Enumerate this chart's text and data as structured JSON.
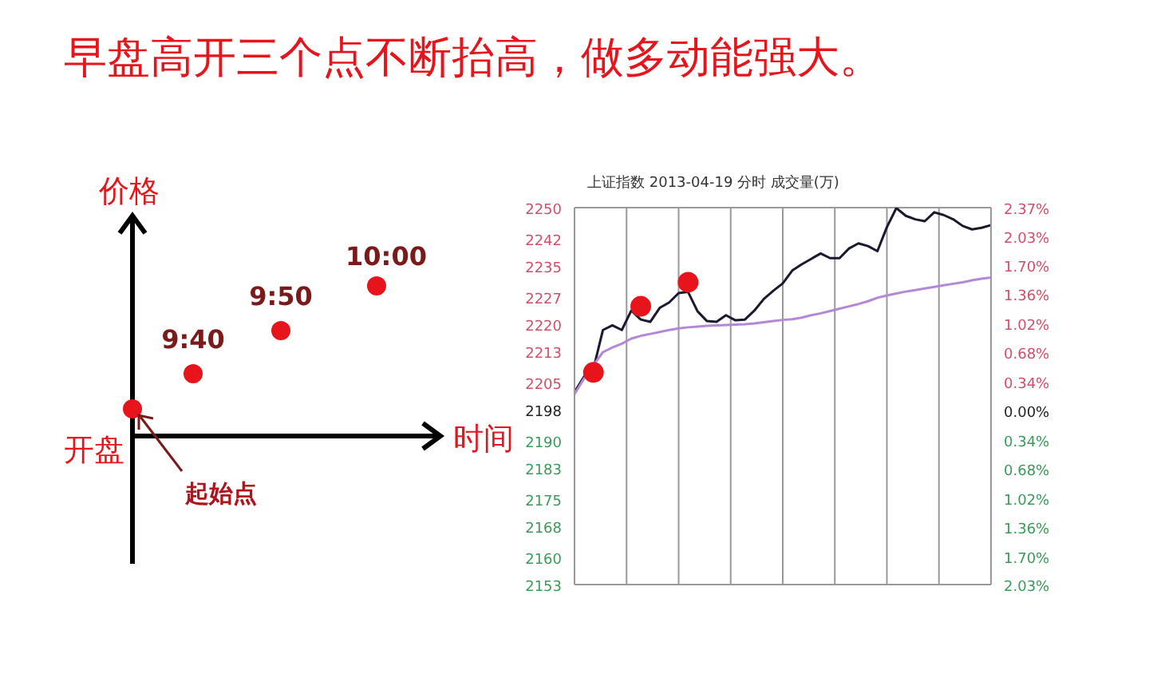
{
  "chart_data": [
    {
      "type": "other",
      "title": "早盘高开三个点不断抬高，做多动能强大。",
      "xlabel": "时间",
      "ylabel": "价格",
      "annotations": [
        "9:40",
        "9:50",
        "10:00",
        "开盘",
        "起始点"
      ]
    },
    {
      "type": "line",
      "title": "上证指数 2013-04-19 分时 成交量(万)",
      "categories": [
        null,
        null,
        null,
        null,
        null,
        null,
        null,
        null,
        null,
        null,
        null,
        null,
        null,
        null,
        null,
        null,
        null,
        null,
        null,
        null,
        null,
        null,
        null,
        null,
        null,
        null,
        null,
        null,
        null,
        null,
        null,
        null,
        null,
        null,
        null,
        null,
        null,
        null,
        null,
        null,
        null,
        null,
        null,
        null,
        null
      ],
      "ylim": [
        2153,
        2250
      ],
      "yticks": [
        2250,
        2242,
        2235,
        2227,
        2220,
        2213,
        2205,
        2198,
        2190,
        2183,
        2175,
        2168,
        2160,
        2153
      ],
      "y2lim": [
        -2.03,
        2.37
      ],
      "y2ticks": [
        {
          "value": 2.37,
          "label": "2.37%"
        },
        {
          "value": 2.03,
          "label": "2.03%"
        },
        {
          "value": 1.7,
          "label": "1.70%"
        },
        {
          "value": 1.36,
          "label": "1.36%"
        },
        {
          "value": 1.02,
          "label": "1.02%"
        },
        {
          "value": 0.68,
          "label": "0.68%"
        },
        {
          "value": 0.34,
          "label": "0.34%"
        },
        {
          "value": 0,
          "label": "0.00%"
        },
        {
          "value": -0.34,
          "label": "0.34%"
        },
        {
          "value": -0.68,
          "label": "0.68%"
        },
        {
          "value": -1.02,
          "label": "1.02%"
        },
        {
          "value": -1.36,
          "label": "1.36%"
        },
        {
          "value": -1.7,
          "label": "1.70%"
        },
        {
          "value": -2.03,
          "label": "2.03%"
        }
      ],
      "grid": true,
      "legend": false,
      "marker": "none",
      "series": [
        {
          "color": "#1a1a2e",
          "values": [
            2202.5,
            2206.5,
            2208.5,
            2218.5,
            2219.7,
            2218.5,
            2223.5,
            2221.2,
            2220.6,
            2224.2,
            2225.6,
            2228,
            2228.3,
            2223.3,
            2220.8,
            2220.6,
            2222.3,
            2221,
            2221.2,
            2223.5,
            2226.5,
            2228.6,
            2230.5,
            2233.8,
            2235.4,
            2236.8,
            2238.2,
            2237,
            2237,
            2239.5,
            2240.8,
            2240.1,
            2238.8,
            2245,
            2249.9,
            2247.9,
            2247,
            2246.5,
            2248.8,
            2248.1,
            2247,
            2245.3,
            2244.4,
            2244.8,
            2245.5
          ]
        },
        {
          "color": "#b388d6",
          "values": [
            2202,
            2206,
            2209.5,
            2212.8,
            2214,
            2215,
            2216.3,
            2217,
            2217.5,
            2218,
            2218.5,
            2218.9,
            2219.2,
            2219.4,
            2219.6,
            2219.7,
            2219.8,
            2219.9,
            2220,
            2220.2,
            2220.5,
            2220.8,
            2221.1,
            2221.3,
            2221.7,
            2222.3,
            2222.8,
            2223.4,
            2224,
            2224.6,
            2225.2,
            2225.9,
            2226.8,
            2227.4,
            2227.9,
            2228.4,
            2228.8,
            2229.2,
            2229.6,
            2230,
            2230.4,
            2230.8,
            2231.3,
            2231.7,
            2232
          ]
        },
        {
          "type": "scatter",
          "marker": "circle",
          "color": "#e8141c",
          "values": [
            null,
            null,
            2207.6,
            null,
            null,
            null,
            null,
            2224.6,
            null,
            null,
            null,
            null,
            2230.8,
            null,
            null,
            null,
            null,
            null,
            null,
            null,
            null,
            null,
            null,
            null,
            null,
            null,
            null,
            null,
            null,
            null,
            null,
            null,
            null,
            null,
            null,
            null,
            null,
            null,
            null,
            null,
            null,
            null,
            null,
            null,
            null
          ]
        }
      ]
    }
  ]
}
